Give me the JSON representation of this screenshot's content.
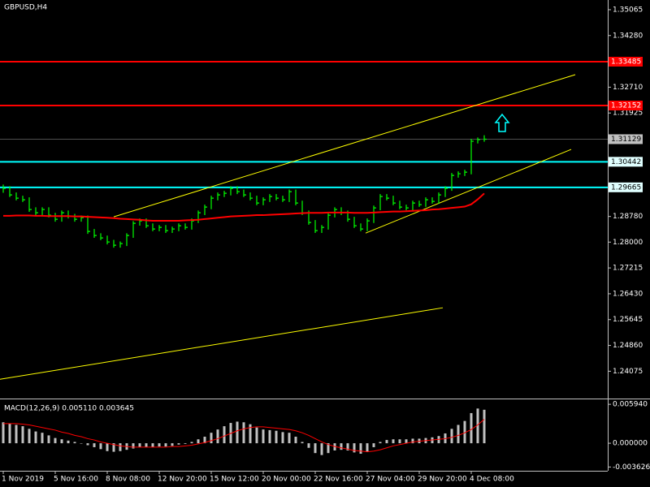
{
  "chart_data": {
    "type": "ohlc",
    "title": "GBPUSD,H4",
    "color": "#00ff00",
    "categories": [
      "1 Nov 2019",
      null,
      null,
      null,
      null,
      null,
      null,
      null,
      "5 Nov 16:00",
      null,
      null,
      null,
      null,
      null,
      null,
      null,
      "8 Nov 08:00",
      null,
      null,
      null,
      null,
      null,
      null,
      null,
      "12 Nov 20:00",
      null,
      null,
      null,
      null,
      null,
      null,
      null,
      "15 Nov 12:00",
      null,
      null,
      null,
      null,
      null,
      null,
      null,
      "20 Nov 00:00",
      null,
      null,
      null,
      null,
      null,
      null,
      null,
      "22 Nov 16:00",
      null,
      null,
      null,
      null,
      null,
      null,
      null,
      "27 Nov 04:00",
      null,
      null,
      null,
      null,
      null,
      null,
      null,
      "29 Nov 20:00",
      null,
      null,
      null,
      null,
      null,
      null,
      null,
      "4 Dec 08:00",
      null,
      null
    ],
    "high": [
      1.2975,
      1.297,
      1.2951,
      1.2941,
      1.2936,
      1.2906,
      1.2906,
      1.2906,
      1.2889,
      1.2896,
      1.2896,
      1.2886,
      1.2881,
      1.2881,
      1.284,
      1.2827,
      1.282,
      1.2807,
      1.2802,
      1.2827,
      1.2864,
      1.2872,
      1.2872,
      1.2857,
      1.2852,
      1.2852,
      1.2847,
      1.2857,
      1.2857,
      1.2872,
      1.2896,
      1.2914,
      1.2941,
      1.2951,
      1.2956,
      1.297,
      1.297,
      1.296,
      1.2951,
      1.2941,
      1.2936,
      1.2946,
      1.2946,
      1.2941,
      1.296,
      1.296,
      1.2926,
      1.2896,
      1.2867,
      1.2852,
      1.2889,
      1.2906,
      1.2906,
      1.2896,
      1.2877,
      1.2857,
      1.2872,
      1.2911,
      1.2946,
      1.2946,
      1.2941,
      1.2926,
      1.2914,
      1.2926,
      1.2926,
      1.2936,
      1.2936,
      1.2951,
      1.297,
      1.301,
      1.3015,
      1.302,
      1.3114,
      1.3118,
      1.3125
    ],
    "low": [
      1.295,
      1.2937,
      1.2927,
      1.2922,
      1.2892,
      1.2882,
      1.2882,
      1.2875,
      1.2862,
      1.2862,
      1.2872,
      1.2862,
      1.2862,
      1.2825,
      1.2813,
      1.2806,
      1.2793,
      1.2783,
      1.2783,
      1.2788,
      1.2813,
      1.285,
      1.2843,
      1.2833,
      1.2833,
      1.2828,
      1.2828,
      1.2833,
      1.2838,
      1.2838,
      1.2858,
      1.2882,
      1.29,
      1.2927,
      1.2937,
      1.2942,
      1.2946,
      1.2937,
      1.2927,
      1.2912,
      1.2912,
      1.2922,
      1.2927,
      1.2922,
      1.2922,
      1.2912,
      1.2882,
      1.2853,
      1.2828,
      1.2828,
      1.2838,
      1.2875,
      1.2882,
      1.2862,
      1.2843,
      1.2833,
      1.2833,
      1.2858,
      1.2897,
      1.2927,
      1.2912,
      1.29,
      1.2897,
      1.2897,
      1.2907,
      1.2907,
      1.2917,
      1.2917,
      1.2937,
      1.2956,
      1.2996,
      1.3001,
      1.3006,
      1.31,
      1.3105
    ],
    "close": [
      1.29633,
      1.29436,
      1.29337,
      1.29288,
      1.28991,
      1.28892,
      1.28991,
      1.28818,
      1.28695,
      1.28892,
      1.28793,
      1.28695,
      1.28744,
      1.28325,
      1.28201,
      1.28127,
      1.28004,
      1.27905,
      1.27954,
      1.28201,
      1.28572,
      1.28646,
      1.28497,
      1.28399,
      1.28448,
      1.28349,
      1.28399,
      1.28497,
      1.28448,
      1.28646,
      1.28892,
      1.29065,
      1.29337,
      1.29436,
      1.29485,
      1.29633,
      1.29534,
      1.29436,
      1.29337,
      1.29189,
      1.29287,
      1.29386,
      1.29337,
      1.29288,
      1.29534,
      1.29189,
      1.28892,
      1.28596,
      1.28349,
      1.28448,
      1.28818,
      1.28991,
      1.28892,
      1.28695,
      1.28497,
      1.28399,
      1.28646,
      1.29041,
      1.29386,
      1.29337,
      1.29189,
      1.29065,
      1.29041,
      1.29189,
      1.29139,
      1.29287,
      1.29238,
      1.29436,
      1.29633,
      1.30028,
      1.30078,
      1.30127,
      1.31065,
      1.31115,
      1.31129
    ],
    "ma": {
      "color": "#ff0000",
      "values": [
        1.288,
        1.288,
        1.2881,
        1.2881,
        1.2881,
        1.288,
        1.288,
        1.2879,
        1.2879,
        1.2879,
        1.2879,
        1.2878,
        1.2878,
        1.2877,
        1.2876,
        1.2875,
        1.2874,
        1.2873,
        1.2871,
        1.287,
        1.2869,
        1.2868,
        1.2866,
        1.2865,
        1.2865,
        1.2865,
        1.2865,
        1.2865,
        1.2866,
        1.2867,
        1.2868,
        1.287,
        1.2872,
        1.2874,
        1.2876,
        1.2878,
        1.2879,
        1.288,
        1.2881,
        1.2882,
        1.2882,
        1.2883,
        1.2884,
        1.2885,
        1.2886,
        1.2887,
        1.2888,
        1.2889,
        1.2889,
        1.2889,
        1.289,
        1.289,
        1.289,
        1.289,
        1.2889,
        1.2889,
        1.2889,
        1.289,
        1.2891,
        1.2892,
        1.2893,
        1.2893,
        1.2894,
        1.2895,
        1.2896,
        1.2897,
        1.2899,
        1.29,
        1.2902,
        1.2904,
        1.2906,
        1.2908,
        1.2915,
        1.293,
        1.2948
      ]
    },
    "xlim": [
      -0.5,
      93
    ],
    "ylim": [
      1.2327,
      1.3536
    ],
    "yticks": [
      1.35065,
      {
        "value": 1.3428,
        "label": "1.34280"
      },
      {
        "value": 1.3271,
        "label": "1.32710"
      },
      1.31925,
      {
        "value": 1.2878,
        "label": "1.28780"
      },
      {
        "value": 1.28,
        "label": "1.28000"
      },
      1.27215,
      {
        "value": 1.2643,
        "label": "1.26430"
      },
      1.25645,
      {
        "value": 1.2486,
        "label": "1.24860"
      },
      1.24075
    ],
    "levels": [
      {
        "value": 1.33485,
        "color": "#ff0000"
      },
      {
        "value": 1.32152,
        "color": "#ff0000"
      },
      {
        "value": 1.30442,
        "color": "#00ffff"
      },
      {
        "value": 1.29665,
        "color": "#00ffff"
      }
    ],
    "last_price": 1.31129,
    "trendlines": [
      {
        "color": "#ffff00",
        "x": [
          17,
          88
        ],
        "y": [
          1.28769,
          1.3309
        ]
      },
      {
        "color": "#ffff00",
        "x": [
          55.75,
          87.375
        ],
        "y": [
          1.28275,
          1.30818
        ]
      },
      {
        "color": "#ffff00",
        "x": [
          -0.5,
          67.625
        ],
        "y": [
          1.23831,
          1.26004
        ]
      }
    ],
    "macd": {
      "title": "MACD(12,26,9) 0.005110 0.003645",
      "ylim": [
        -0.0042,
        0.0067
      ],
      "yticks": [
        {
          "value": 0.00594,
          "label": "0.005940"
        },
        {
          "value": 0,
          "label": "0.000000"
        },
        -0.003626
      ],
      "histogram": {
        "color": "#c0c0c0",
        "values": [
          0.0032,
          0.003,
          0.0028,
          0.0026,
          0.0022,
          0.0018,
          0.0016,
          0.0012,
          0.0008,
          0.0006,
          0.0004,
          0.0002,
          0.0,
          -0.0003,
          -0.0006,
          -0.0009,
          -0.0012,
          -0.0013,
          -0.0012,
          -0.001,
          -0.0008,
          -0.0006,
          -0.0006,
          -0.0006,
          -0.0005,
          -0.0005,
          -0.0004,
          -0.0002,
          -0.0001,
          0.0002,
          0.0006,
          0.001,
          0.0016,
          0.0021,
          0.0026,
          0.0031,
          0.0033,
          0.0032,
          0.0029,
          0.0024,
          0.0021,
          0.002,
          0.0019,
          0.0017,
          0.0016,
          0.001,
          0.0002,
          -0.0007,
          -0.0015,
          -0.0018,
          -0.0015,
          -0.0011,
          -0.001,
          -0.0011,
          -0.0014,
          -0.0016,
          -0.0013,
          -0.0006,
          0.0002,
          0.0005,
          0.0006,
          0.0006,
          0.0006,
          0.0007,
          0.0007,
          0.0008,
          0.0009,
          0.0011,
          0.0015,
          0.0022,
          0.0028,
          0.0034,
          0.0046,
          0.0053,
          0.00511
        ]
      },
      "signal": {
        "color": "#ff0000",
        "values": [
          0.003,
          0.003,
          0.003,
          0.0029,
          0.0028,
          0.0026,
          0.0024,
          0.0022,
          0.002,
          0.0017,
          0.0015,
          0.0012,
          0.001,
          0.0007,
          0.0005,
          0.0002,
          0.0,
          -0.0002,
          -0.0004,
          -0.0005,
          -0.0006,
          -0.0006,
          -0.0006,
          -0.0006,
          -0.0006,
          -0.0006,
          -0.0005,
          -0.0005,
          -0.0004,
          -0.0003,
          -0.0001,
          0.0001,
          0.0004,
          0.0007,
          0.0011,
          0.0015,
          0.0019,
          0.0022,
          0.0024,
          0.0025,
          0.0025,
          0.0024,
          0.0023,
          0.0022,
          0.0021,
          0.0019,
          0.0016,
          0.0012,
          0.0007,
          0.0002,
          -0.0002,
          -0.0005,
          -0.0007,
          -0.0009,
          -0.0011,
          -0.0012,
          -0.0013,
          -0.0012,
          -0.001,
          -0.0007,
          -0.0004,
          -0.0002,
          0.0,
          0.0002,
          0.0003,
          0.0004,
          0.0005,
          0.0006,
          0.0007,
          0.0009,
          0.0012,
          0.0016,
          0.0021,
          0.0028,
          0.003645
        ]
      }
    }
  }
}
